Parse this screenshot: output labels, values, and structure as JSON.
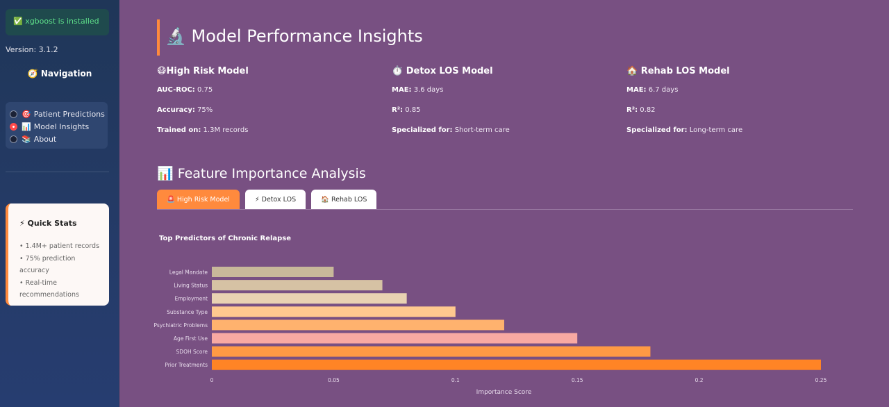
{
  "sidebar": {
    "installed_text": "✅ xgboost is installed",
    "version": "Version: 3.1.2",
    "nav_title": "🧭 Navigation",
    "nav_items": [
      {
        "icon": "🎯",
        "label": "Patient Predictions",
        "selected": false
      },
      {
        "icon": "📊",
        "label": "Model Insights",
        "selected": true
      },
      {
        "icon": "📚",
        "label": "About",
        "selected": false
      }
    ],
    "quick_stats": {
      "title": "⚡ Quick Stats",
      "items": [
        "• 1.4M+ patient records",
        "• 75% prediction accuracy",
        "• Real-time recommendations"
      ]
    }
  },
  "main": {
    "title": "🔬 Model Performance Insights",
    "models": [
      {
        "title": "😷High Risk Model",
        "metrics": [
          {
            "label": "AUC-ROC:",
            "value": "0.75"
          },
          {
            "label": "Accuracy:",
            "value": "75%"
          },
          {
            "label": "Trained on:",
            "value": "1.3M records"
          }
        ]
      },
      {
        "title": "⏱️ Detox LOS Model",
        "metrics": [
          {
            "label": "MAE:",
            "value": "3.6 days"
          },
          {
            "label": "R²:",
            "value": "0.85"
          },
          {
            "label": "Specialized for:",
            "value": "Short-term care"
          }
        ]
      },
      {
        "title": "🏠 Rehab LOS Model",
        "metrics": [
          {
            "label": "MAE:",
            "value": "6.7 days"
          },
          {
            "label": "R²:",
            "value": "0.82"
          },
          {
            "label": "Specialized for:",
            "value": "Long-term care"
          }
        ]
      }
    ],
    "section_title": "📊 Feature Importance Analysis",
    "tabs": [
      "🚨 High Risk Model",
      "⚡ Detox LOS",
      "🏠 Rehab LOS"
    ],
    "active_tab": 0
  },
  "chart_data": {
    "type": "bar",
    "orientation": "horizontal",
    "title": "Top Predictors of Chronic Relapse",
    "xlabel": "Importance Score",
    "ylabel": "",
    "xlim": [
      0,
      0.25
    ],
    "xticks": [
      "0",
      "0.05",
      "0.1",
      "0.15",
      "0.2",
      "0.25"
    ],
    "categories": [
      "Legal Mandate",
      "Living Status",
      "Employment",
      "Substance Type",
      "Psychiatric Problems",
      "Age First Use",
      "SDOH Score",
      "Prior Treatments"
    ],
    "values": [
      0.05,
      0.07,
      0.08,
      0.1,
      0.12,
      0.15,
      0.18,
      0.25
    ],
    "colors": [
      "#c8b89a",
      "#d6c2a4",
      "#e9d2b2",
      "#ffc98f",
      "#ffb26e",
      "#f8a9a2",
      "#ff9a44",
      "#ff8425"
    ]
  }
}
